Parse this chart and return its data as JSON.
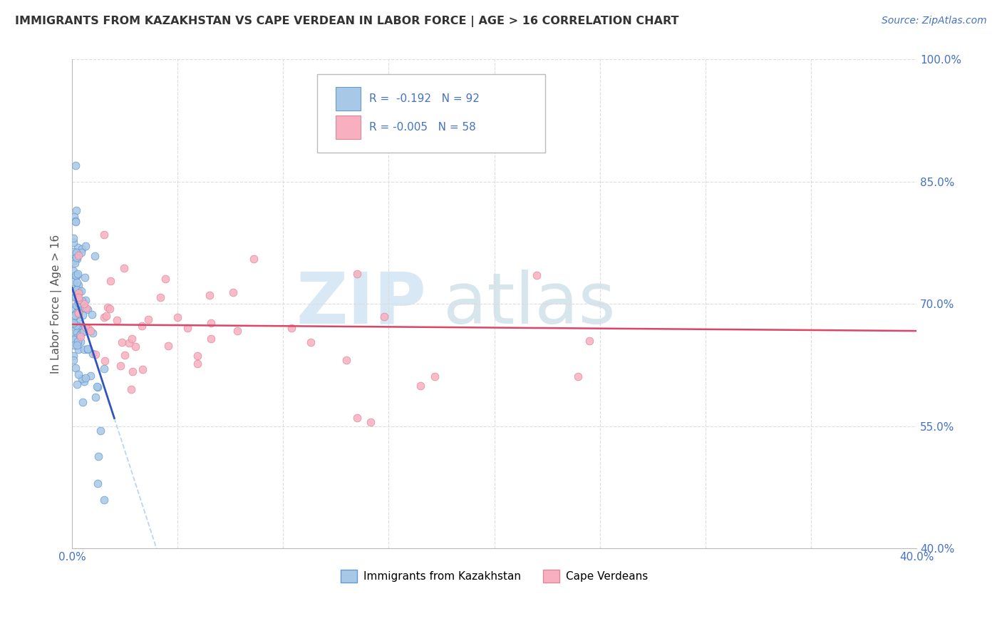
{
  "title": "IMMIGRANTS FROM KAZAKHSTAN VS CAPE VERDEAN IN LABOR FORCE | AGE > 16 CORRELATION CHART",
  "source": "Source: ZipAtlas.com",
  "ylabel": "In Labor Force | Age > 16",
  "xlim": [
    0.0,
    0.4
  ],
  "ylim": [
    0.4,
    1.0
  ],
  "x_ticks": [
    0.0,
    0.05,
    0.1,
    0.15,
    0.2,
    0.25,
    0.3,
    0.35,
    0.4
  ],
  "x_tick_labels": [
    "0.0%",
    "",
    "",
    "",
    "",
    "",
    "",
    "",
    "40.0%"
  ],
  "y_ticks_right": [
    1.0,
    0.85,
    0.7,
    0.55,
    0.4
  ],
  "y_tick_labels_right": [
    "100.0%",
    "85.0%",
    "70.0%",
    "55.0%",
    "40.0%"
  ],
  "kazakhstan_color": "#a8c8e8",
  "cape_verdean_color": "#f8b0c0",
  "kaz_edge_color": "#6699cc",
  "cv_edge_color": "#dd8899",
  "kaz_line_color": "#3355bb",
  "cv_line_color": "#dd4466",
  "dashed_line_color": "#aaccee",
  "grid_color": "#dddddd",
  "text_color": "#333333",
  "blue_text_color": "#4472c4",
  "legend_r1": "R =  -0.192",
  "legend_n1": "N = 92",
  "legend_r2": "R = -0.005",
  "legend_n2": "N = 58",
  "watermark_zip_color": "#c8dff0",
  "watermark_atlas_color": "#b0ccdd"
}
